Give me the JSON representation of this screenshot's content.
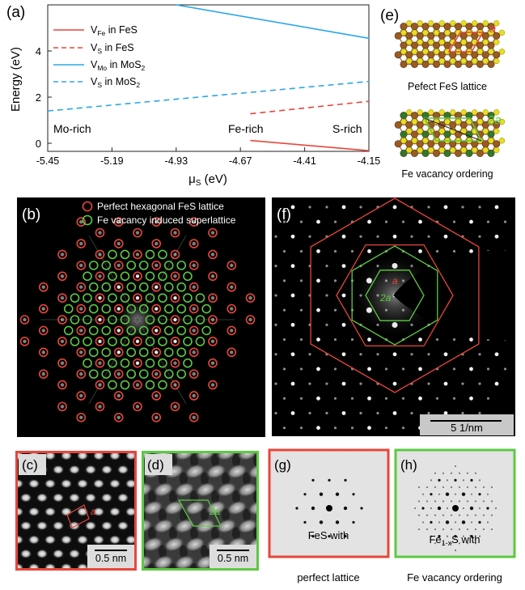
{
  "panel_labels": {
    "a": "(a)",
    "b": "(b)",
    "c": "(c)",
    "d": "(d)",
    "e": "(e)",
    "f": "(f)",
    "g": "(g)",
    "h": "(h)"
  },
  "chart_data": {
    "type": "line",
    "xlabel": "μS (eV)",
    "ylabel": "Energy (eV)",
    "xlim": [
      -5.45,
      -4.15
    ],
    "ylim": [
      -0.35,
      6.0
    ],
    "xticks": [
      "-5.45",
      "-5.19",
      "-4.93",
      "-4.67",
      "-4.41",
      "-4.15"
    ],
    "yticks": [
      "0",
      "2",
      "4"
    ],
    "legend_position": "top-left",
    "series": [
      {
        "name": "VFe in FeS",
        "style": "solid",
        "color": "#e8463a",
        "x": [
          -4.63,
          -4.15
        ],
        "y": [
          0.12,
          -0.32
        ]
      },
      {
        "name": "VS in FeS",
        "style": "dashed",
        "color": "#e8463a",
        "x": [
          -4.63,
          -4.15
        ],
        "y": [
          1.28,
          1.82
        ]
      },
      {
        "name": "VMo in MoS2",
        "style": "solid",
        "color": "#2aa7e8",
        "x": [
          -4.93,
          -4.15
        ],
        "y": [
          6.0,
          4.55
        ]
      },
      {
        "name": "VS in MoS2",
        "style": "dashed",
        "color": "#2aa7e8",
        "x": [
          -5.45,
          -4.15
        ],
        "y": [
          1.4,
          2.68
        ]
      }
    ],
    "annotations": [
      "Mo-rich",
      "Fe-rich",
      "S-rich"
    ]
  },
  "panel_b": {
    "legend": [
      "Perfect hexagonal FeS lattice",
      "Fe vacancy induced superlattice"
    ],
    "colors": {
      "red": "#e8463a",
      "green": "#5dc943"
    }
  },
  "panel_c": {
    "lattice_label": "a",
    "scalebar": "0.5 nm"
  },
  "panel_d": {
    "lattice_label": "2a",
    "scalebar": "0.5 nm"
  },
  "panel_e": {
    "top_label": "a",
    "top_caption": "Pefect FeS lattice",
    "bottom_label": "2a",
    "bottom_caption": "Fe vacancy ordering"
  },
  "panel_f": {
    "label_a": "a",
    "label_2a": "2a",
    "scalebar": "5 1/nm"
  },
  "panel_g": {
    "caption_line1": "FeS with",
    "caption_line2": "perfect lattice"
  },
  "panel_h": {
    "caption_formula": "Fe",
    "caption_sub": "1-x",
    "caption_rest": "S with",
    "caption_line2": "Fe vacancy ordering"
  }
}
